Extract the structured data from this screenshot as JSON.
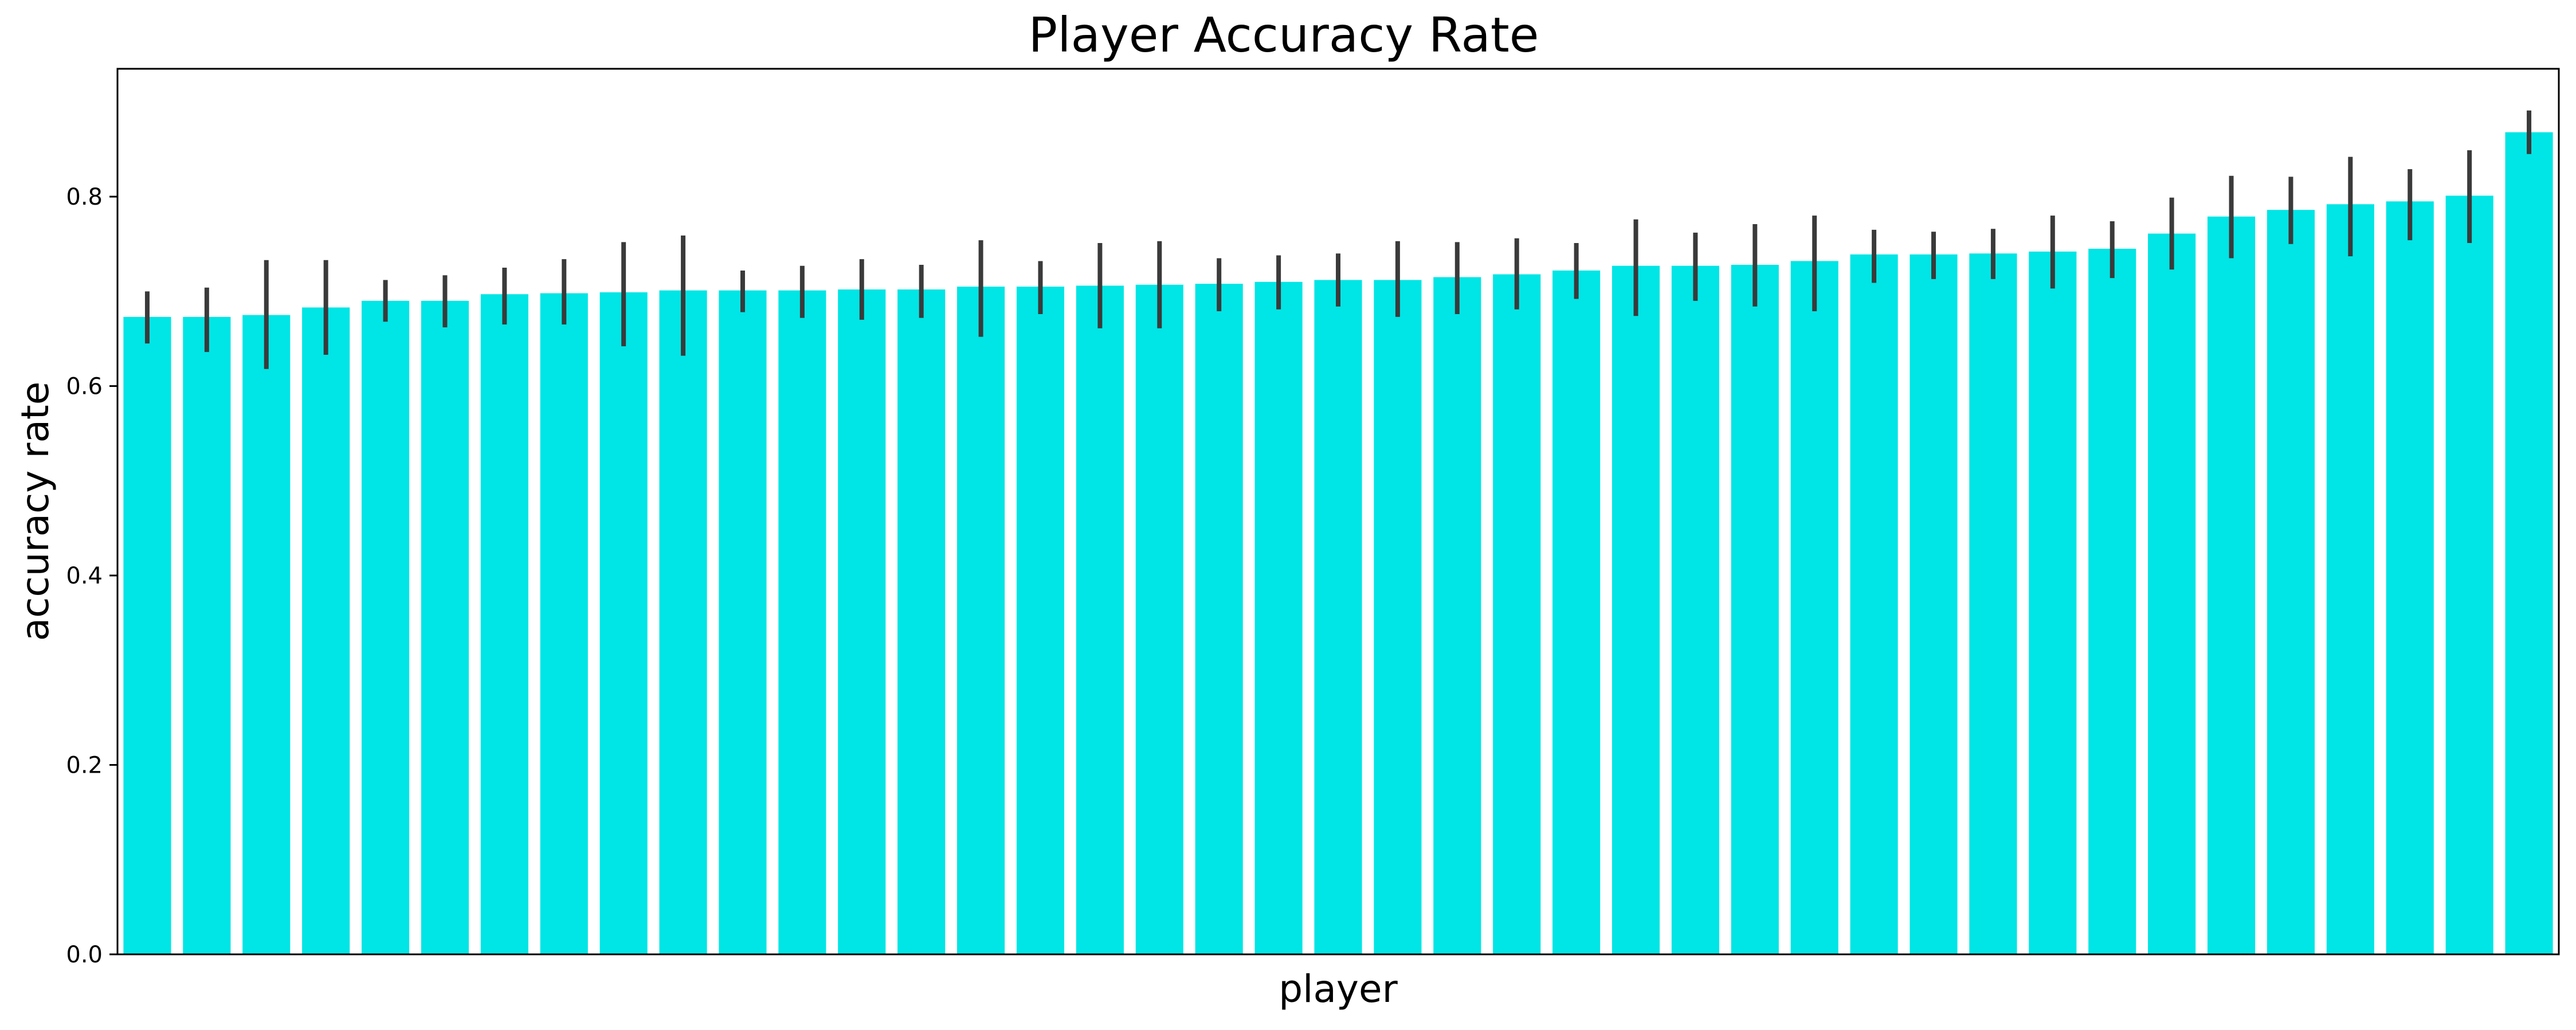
{
  "chart_data": {
    "type": "bar",
    "title": "Player Accuracy Rate",
    "xlabel": "player",
    "ylabel": "accuracy rate",
    "ylim": [
      0,
      0.935
    ],
    "yticks": [
      "0.0",
      "0.2",
      "0.4",
      "0.6",
      "0.8"
    ],
    "grid": false,
    "legend": "none",
    "bar_color": "#00E5E5",
    "errorbar_color": "#3A3A3A",
    "values": [
      0.673,
      0.673,
      0.675,
      0.683,
      0.69,
      0.69,
      0.697,
      0.698,
      0.699,
      0.701,
      0.701,
      0.701,
      0.702,
      0.702,
      0.705,
      0.705,
      0.706,
      0.707,
      0.708,
      0.71,
      0.712,
      0.712,
      0.715,
      0.718,
      0.722,
      0.727,
      0.727,
      0.728,
      0.732,
      0.739,
      0.739,
      0.74,
      0.742,
      0.745,
      0.761,
      0.779,
      0.786,
      0.792,
      0.795,
      0.801,
      0.868
    ],
    "error_low": [
      0.645,
      0.636,
      0.618,
      0.633,
      0.668,
      0.662,
      0.665,
      0.665,
      0.642,
      0.632,
      0.678,
      0.672,
      0.67,
      0.672,
      0.652,
      0.676,
      0.661,
      0.661,
      0.679,
      0.681,
      0.684,
      0.673,
      0.676,
      0.681,
      0.692,
      0.674,
      0.69,
      0.684,
      0.679,
      0.709,
      0.713,
      0.713,
      0.703,
      0.714,
      0.723,
      0.735,
      0.75,
      0.737,
      0.754,
      0.751,
      0.845
    ],
    "error_high": [
      0.7,
      0.704,
      0.733,
      0.733,
      0.712,
      0.717,
      0.725,
      0.734,
      0.752,
      0.759,
      0.722,
      0.727,
      0.734,
      0.728,
      0.754,
      0.732,
      0.751,
      0.753,
      0.735,
      0.738,
      0.74,
      0.753,
      0.752,
      0.756,
      0.751,
      0.776,
      0.762,
      0.771,
      0.78,
      0.765,
      0.763,
      0.766,
      0.78,
      0.774,
      0.799,
      0.822,
      0.821,
      0.842,
      0.829,
      0.849,
      0.891
    ]
  }
}
